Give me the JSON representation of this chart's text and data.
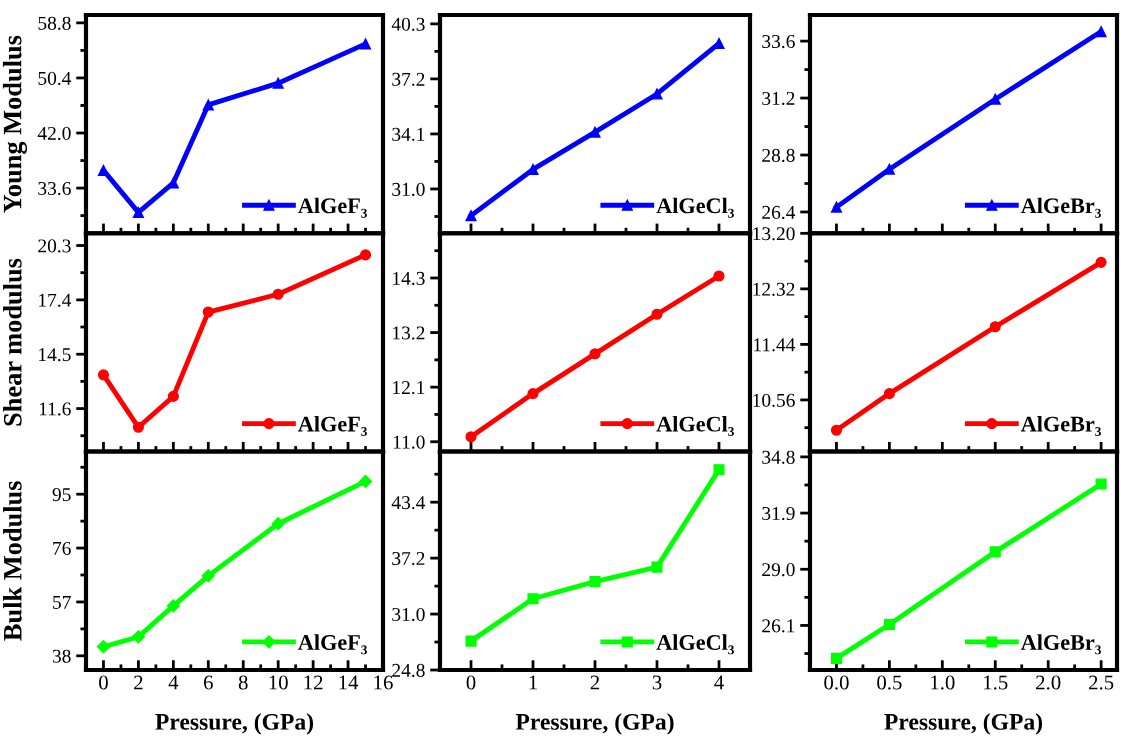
{
  "chart_data": [
    {
      "type": "line",
      "ylabel": "Young Modulus",
      "x": [
        0,
        2,
        4,
        6,
        10,
        15
      ],
      "xlim": [
        -1,
        16
      ],
      "xticks": [
        0,
        2,
        4,
        6,
        8,
        10,
        12,
        14,
        16
      ],
      "ylim": [
        26.7,
        60.0
      ],
      "yticks": [
        {
          "value": 33.6,
          "label": "33.6"
        },
        {
          "value": 42,
          "label": "42.0"
        },
        {
          "value": 50.4,
          "label": "50.4"
        },
        {
          "value": 58.8,
          "label": "58.8"
        }
      ],
      "tick_labels": "y",
      "marker": "triangle",
      "legend": "bottom right",
      "series": [
        {
          "name": "AlGeF₃",
          "color": "#0000ff",
          "values": [
            36.3,
            29.9,
            34.4,
            46.3,
            49.6,
            55.6
          ]
        }
      ]
    },
    {
      "type": "line",
      "x": [
        0,
        1,
        2,
        3,
        4
      ],
      "xlim": [
        -0.5,
        4.5
      ],
      "xticks": [
        0,
        1,
        2,
        3,
        4
      ],
      "ylim": [
        28.5,
        40.8
      ],
      "yticks": [
        {
          "value": 31,
          "label": "31.0"
        },
        {
          "value": 34.1,
          "label": "34.1"
        },
        {
          "value": 37.2,
          "label": "37.2"
        },
        {
          "value": 40.3,
          "label": "40.3"
        }
      ],
      "tick_labels": "y",
      "marker": "triangle",
      "legend": "bottom right",
      "series": [
        {
          "name": "AlGeCl₃",
          "color": "#0000ff",
          "values": [
            29.5,
            32.1,
            34.2,
            36.35,
            39.2
          ]
        }
      ]
    },
    {
      "type": "line",
      "x": [
        0,
        0.5,
        1.5,
        2.5
      ],
      "xlim": [
        -0.25,
        2.65
      ],
      "xticks": [
        0,
        0.5,
        1,
        1.5,
        2,
        2.5
      ],
      "ylim": [
        25.5,
        34.7
      ],
      "yticks": [
        {
          "value": 26.4,
          "label": "26.4"
        },
        {
          "value": 28.8,
          "label": "28.8"
        },
        {
          "value": 31.2,
          "label": "31.2"
        },
        {
          "value": 33.6,
          "label": "33.6"
        }
      ],
      "tick_labels": "y",
      "marker": "triangle",
      "legend": "bottom right",
      "series": [
        {
          "name": "AlGeBr₃",
          "color": "#0000ff",
          "values": [
            26.6,
            28.2,
            31.15,
            34.0
          ]
        }
      ]
    },
    {
      "type": "line",
      "ylabel": "Shear modulus",
      "x": [
        0,
        2,
        4,
        6,
        10,
        15
      ],
      "xlim": [
        -1,
        16
      ],
      "xticks": [
        0,
        2,
        4,
        6,
        8,
        10,
        12,
        14,
        16
      ],
      "ylim": [
        9.3,
        20.95
      ],
      "yticks": [
        {
          "value": 11.6,
          "label": "11.6"
        },
        {
          "value": 14.5,
          "label": "14.5"
        },
        {
          "value": 17.4,
          "label": "17.4"
        },
        {
          "value": 20.3,
          "label": "20.3"
        }
      ],
      "tick_labels": "y",
      "marker": "circle",
      "legend": "bottom right",
      "series": [
        {
          "name": "AlGeF₃",
          "color": "#ff0000",
          "values": [
            13.4,
            10.6,
            12.25,
            16.75,
            17.7,
            19.8
          ]
        }
      ]
    },
    {
      "type": "line",
      "x": [
        0,
        1,
        2,
        3,
        4
      ],
      "xlim": [
        -0.5,
        4.5
      ],
      "xticks": [
        0,
        1,
        2,
        3,
        4
      ],
      "ylim": [
        10.8,
        15.2
      ],
      "yticks": [
        {
          "value": 11,
          "label": "11.0"
        },
        {
          "value": 12.1,
          "label": "12.1"
        },
        {
          "value": 13.2,
          "label": "13.2"
        },
        {
          "value": 14.3,
          "label": "14.3"
        }
      ],
      "tick_labels": "y",
      "marker": "circle",
      "legend": "bottom right",
      "series": [
        {
          "name": "AlGeCl₃",
          "color": "#ff0000",
          "values": [
            11.1,
            11.97,
            12.77,
            13.57,
            14.34
          ]
        }
      ]
    },
    {
      "type": "line",
      "x": [
        0,
        0.5,
        1.5,
        2.5
      ],
      "xlim": [
        -0.25,
        2.65
      ],
      "xticks": [
        0,
        0.5,
        1,
        1.5,
        2,
        2.5
      ],
      "ylim": [
        9.74,
        13.2
      ],
      "yticks": [
        {
          "value": 10.56,
          "label": "10.56"
        },
        {
          "value": 11.44,
          "label": "11.44"
        },
        {
          "value": 12.32,
          "label": "12.32"
        },
        {
          "value": 13.2,
          "label": "13.20"
        }
      ],
      "tick_labels": "y",
      "marker": "circle",
      "legend": "bottom right",
      "series": [
        {
          "name": "AlGeBr₃",
          "color": "#ff0000",
          "values": [
            10.08,
            10.66,
            11.72,
            12.74
          ]
        }
      ]
    },
    {
      "type": "line",
      "ylabel": "Bulk Modulus",
      "xlabel": "Pressure, (GPa)",
      "x": [
        0,
        2,
        4,
        6,
        10,
        15
      ],
      "xlim": [
        -1,
        16
      ],
      "xticks": [
        0,
        2,
        4,
        6,
        8,
        10,
        12,
        14,
        16
      ],
      "ylim": [
        33,
        110
      ],
      "yticks": [
        38,
        57,
        76,
        95
      ],
      "marker": "diamond",
      "legend": "bottom right",
      "series": [
        {
          "name": "AlGeF₃",
          "color": "#00ff00",
          "values": [
            41.2,
            44.7,
            55.6,
            66.2,
            84.6,
            99.5
          ]
        }
      ]
    },
    {
      "type": "line",
      "xlabel": "Pressure, (GPa)",
      "x": [
        0,
        1,
        2,
        3,
        4
      ],
      "xlim": [
        -0.5,
        4.5
      ],
      "xticks": [
        0,
        1,
        2,
        3,
        4
      ],
      "ylim": [
        24.8,
        49.0
      ],
      "yticks": [
        {
          "value": 24.8,
          "label": "24.8"
        },
        {
          "value": 31,
          "label": "31.0"
        },
        {
          "value": 37.2,
          "label": "37.2"
        },
        {
          "value": 43.4,
          "label": "43.4"
        }
      ],
      "marker": "square",
      "legend": "bottom right",
      "series": [
        {
          "name": "AlGeCl₃",
          "color": "#00ff00",
          "values": [
            28.0,
            32.7,
            34.6,
            36.2,
            47.0
          ]
        }
      ]
    },
    {
      "type": "line",
      "xlabel": "Pressure, (GPa)",
      "x": [
        0,
        0.5,
        1.5,
        2.5
      ],
      "xlim": [
        -0.25,
        2.65
      ],
      "xticks": [
        {
          "value": 0,
          "label": "0.0"
        },
        {
          "value": 0.5,
          "label": "0.5"
        },
        {
          "value": 1,
          "label": "1.0"
        },
        {
          "value": 1.5,
          "label": "1.5"
        },
        {
          "value": 2,
          "label": "2.0"
        },
        {
          "value": 2.5,
          "label": "2.5"
        }
      ],
      "ylim": [
        23.8,
        35.07
      ],
      "yticks": [
        {
          "value": 26.1,
          "label": "26.1"
        },
        {
          "value": 29,
          "label": "29.0"
        },
        {
          "value": 31.9,
          "label": "31.9"
        },
        {
          "value": 34.8,
          "label": "34.8"
        }
      ],
      "marker": "square",
      "legend": "bottom right",
      "series": [
        {
          "name": "AlGeBr₃",
          "color": "#00ff00",
          "values": [
            24.4,
            26.15,
            29.9,
            33.4
          ]
        }
      ]
    }
  ]
}
